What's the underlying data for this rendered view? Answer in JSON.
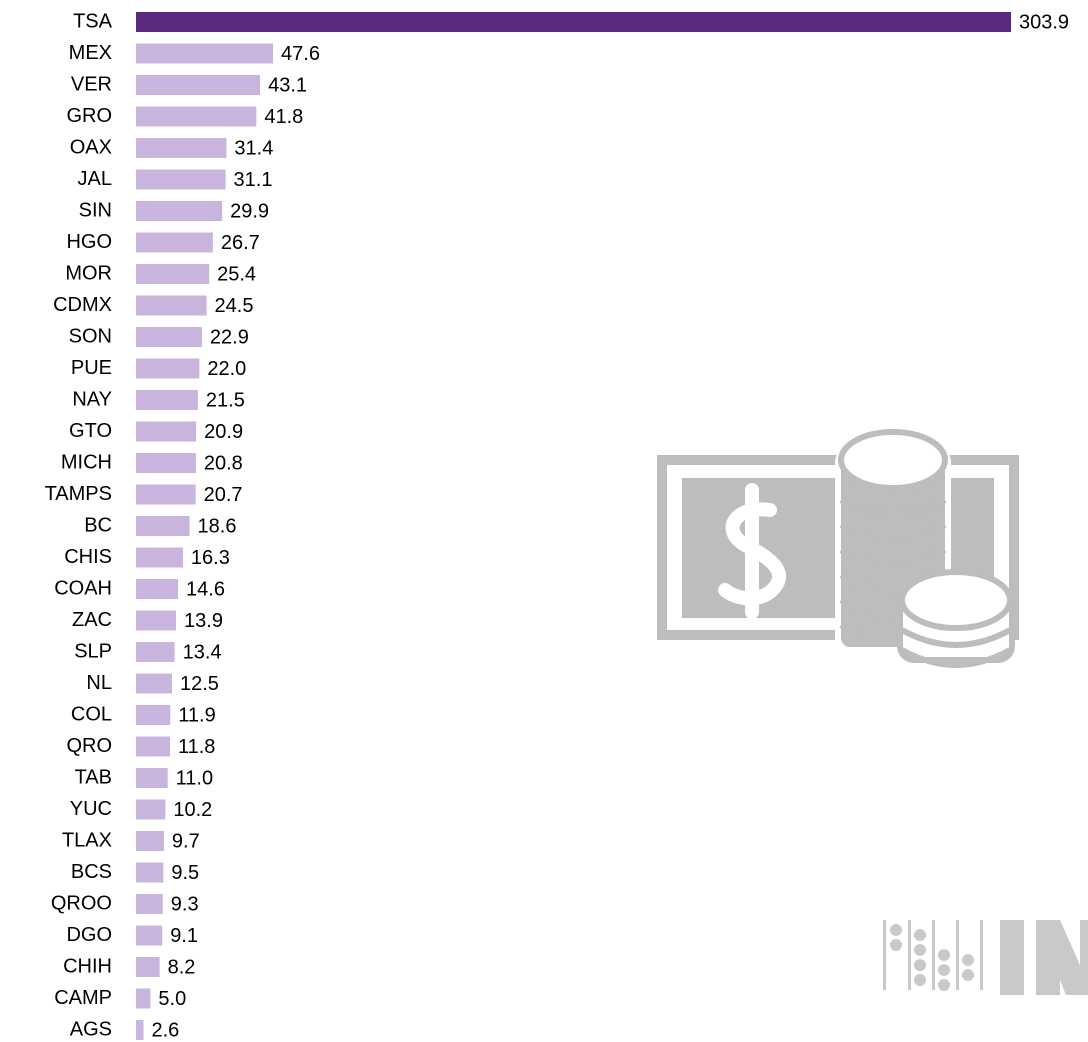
{
  "chart_data": {
    "type": "barh",
    "categories": [
      "TSA",
      "MEX",
      "VER",
      "GRO",
      "OAX",
      "JAL",
      "SIN",
      "HGO",
      "MOR",
      "CDMX",
      "SON",
      "PUE",
      "NAY",
      "GTO",
      "MICH",
      "TAMPS",
      "BC",
      "CHIS",
      "COAH",
      "ZAC",
      "SLP",
      "NL",
      "COL",
      "QRO",
      "TAB",
      "YUC",
      "TLAX",
      "BCS",
      "QROO",
      "DGO",
      "CHIH",
      "CAMP",
      "AGS"
    ],
    "values": [
      303.9,
      47.6,
      43.1,
      41.8,
      31.4,
      31.1,
      29.9,
      26.7,
      25.4,
      24.5,
      22.9,
      22.0,
      21.5,
      20.9,
      20.8,
      20.7,
      18.6,
      16.3,
      14.6,
      13.9,
      13.4,
      12.5,
      11.9,
      11.8,
      11.0,
      10.2,
      9.7,
      9.5,
      9.3,
      9.1,
      8.2,
      5.0,
      2.6
    ],
    "value_labels": [
      "303.9",
      "47.6",
      "43.1",
      "41.8",
      "31.4",
      "31.1",
      "29.9",
      "26.7",
      "25.4",
      "24.5",
      "22.9",
      "22.0",
      "21.5",
      "20.9",
      "20.8",
      "20.7",
      "18.6",
      "16.3",
      "14.6",
      "13.9",
      "13.4",
      "12.5",
      "11.9",
      "11.8",
      "11.0",
      "10.2",
      "9.7",
      "9.5",
      "9.3",
      "9.1",
      "8.2",
      "5.0",
      "2.6"
    ],
    "colors": [
      "#5c2a7c",
      "#c9b4dd",
      "#c9b4dd",
      "#c9b4dd",
      "#c9b4dd",
      "#c9b4dd",
      "#c9b4dd",
      "#c9b4dd",
      "#c9b4dd",
      "#c9b4dd",
      "#c9b4dd",
      "#c9b4dd",
      "#c9b4dd",
      "#c9b4dd",
      "#c9b4dd",
      "#c9b4dd",
      "#c9b4dd",
      "#c9b4dd",
      "#c9b4dd",
      "#c9b4dd",
      "#c9b4dd",
      "#c9b4dd",
      "#c9b4dd",
      "#c9b4dd",
      "#c9b4dd",
      "#c9b4dd",
      "#c9b4dd",
      "#c9b4dd",
      "#c9b4dd",
      "#c9b4dd",
      "#c9b4dd",
      "#c9b4dd",
      "#c9b4dd"
    ]
  }
}
